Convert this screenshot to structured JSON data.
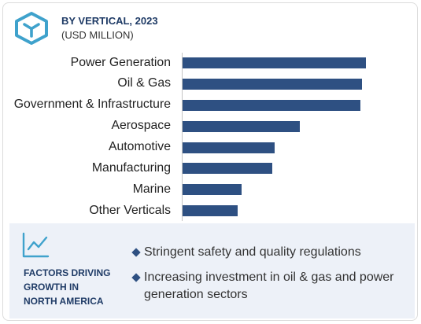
{
  "header": {
    "icon": "cube-icon"
  },
  "chart_data": {
    "type": "bar",
    "orientation": "horizontal",
    "title": "BY VERTICAL, 2023",
    "subtitle": "(USD MILLION)",
    "categories": [
      "Power Generation",
      "Oil & Gas",
      "Government & Infrastructure",
      "Aerospace",
      "Automotive",
      "Manufacturing",
      "Marine",
      "Other Verticals"
    ],
    "values": [
      1.0,
      0.98,
      0.97,
      0.64,
      0.5,
      0.49,
      0.32,
      0.3
    ],
    "color": "#2e5082",
    "grid": false,
    "legend": "none"
  },
  "factors": {
    "icon": "line-chart-icon",
    "bullet_icon": "diamond-bullet-icon",
    "heading_lines": [
      "FACTORS DRIVING",
      "GROWTH IN",
      "NORTH AMERICA"
    ],
    "bullets": [
      "Stringent safety and quality regulations",
      "Increasing investment in oil & gas and power generation sectors"
    ]
  },
  "colors": {
    "accent": "#3fa2cc",
    "title": "#1f3b66",
    "panel_bg": "#edf1f8",
    "frame_border": "#dcdcdc"
  }
}
